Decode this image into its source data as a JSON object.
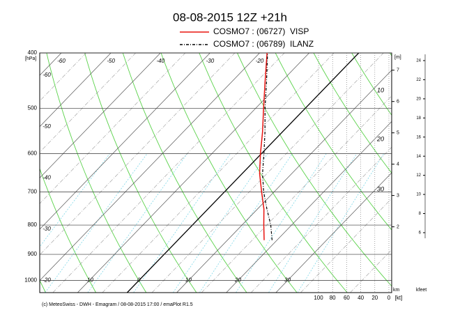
{
  "chart_data": {
    "type": "emagram",
    "title": "08-08-2015  12Z +21h",
    "footer": "(c) MeteoSwiss - DWH - Emagram / 08-08-2015  17:00 / emaPlot R1.5",
    "y_unit": "[hPa]",
    "log_y": true,
    "ylim": [
      1050,
      400
    ],
    "yticks": [
      400,
      500,
      600,
      700,
      800,
      900,
      1000
    ],
    "xlim": [
      -20,
      51
    ],
    "temperature_ticks": [
      -60,
      -50,
      -40,
      -30,
      -20,
      -10,
      0,
      10,
      20,
      30
    ],
    "line_labels": [
      "10",
      "20",
      "30"
    ],
    "pressure": [
      850,
      800,
      750,
      700,
      650,
      600,
      550,
      500,
      450,
      400
    ],
    "series": [
      {
        "name": "COSMO7 : (06727)  VISP",
        "color": "#e8130f",
        "style": "solid",
        "values": [
          17.4,
          14.4,
          11.3,
          7.5,
          3.5,
          -0.2,
          -4.0,
          -8.4,
          -13.2,
          -18.5
        ]
      },
      {
        "name": "COSMO7 : (06789)  ILANZ",
        "color": "#000000",
        "style": "dashdot",
        "values": [
          19.0,
          15.8,
          11.9,
          7.9,
          4.1,
          0.5,
          -3.5,
          -8.1,
          -12.9,
          -18.4
        ]
      }
    ],
    "km_axis": {
      "unit": "[m]",
      "label": "km",
      "lim": [
        -0.1,
        7.55
      ],
      "ticks": [
        2,
        3,
        4,
        5,
        6,
        7
      ]
    },
    "kft_axis": {
      "label": "kfeet",
      "lim": [
        -0.27,
        24.8
      ],
      "ticks": [
        6,
        8,
        10,
        12,
        14,
        16,
        18,
        20,
        22,
        24
      ]
    },
    "wind_axis": {
      "unit": "[kt]",
      "lim": [
        100,
        0
      ],
      "ticks": [
        100,
        80,
        60,
        40,
        20,
        0
      ]
    }
  }
}
